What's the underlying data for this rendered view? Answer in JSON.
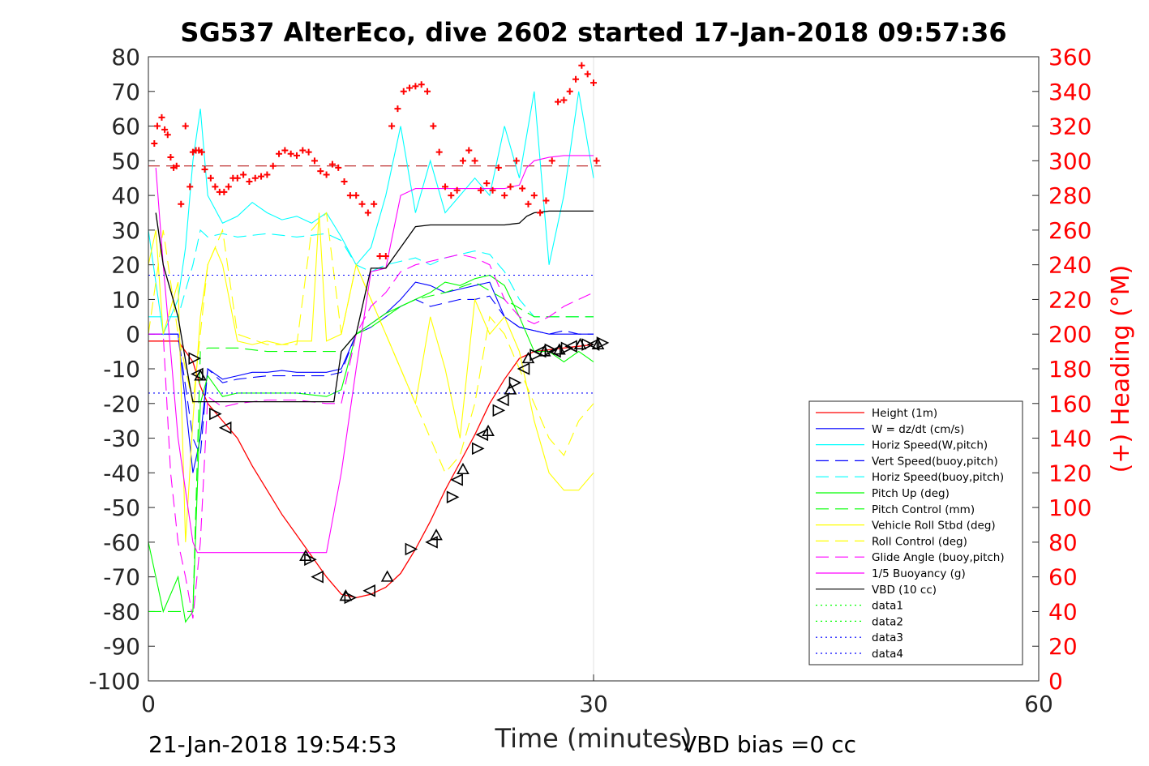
{
  "colors": {
    "height": "#ff0000",
    "w": "#0000ff",
    "horiz": "#00ffff",
    "pitch": "#00ff00",
    "roll": "#ffff00",
    "glide": "#ff00ff",
    "buoy": "#ff00ff",
    "vbd": "#000000",
    "heading": "#ff0000",
    "data12": "#00ff00",
    "data34": "#0000ff"
  },
  "chart_data": {
    "type": "line",
    "title": "SG537 AlterEco, dive 2602 started 17-Jan-2018 09:57:36",
    "xlabel": "Time (minutes)",
    "ylabel_right": "(+) Heading (°M)",
    "xlim": [
      0,
      60
    ],
    "ylim_left": [
      -100,
      80
    ],
    "ylim_right": [
      0,
      360
    ],
    "x_ticks": [
      "0",
      "30",
      "60"
    ],
    "y_ticks_left": [
      "80",
      "70",
      "60",
      "50",
      "40",
      "30",
      "20",
      "10",
      "0",
      "-10",
      "-20",
      "-30",
      "-40",
      "-50",
      "-60",
      "-70",
      "-80",
      "-90",
      "-100"
    ],
    "y_ticks_right": [
      "360",
      "340",
      "320",
      "300",
      "280",
      "260",
      "240",
      "220",
      "200",
      "180",
      "160",
      "140",
      "120",
      "100",
      "80",
      "60",
      "40",
      "20",
      "0"
    ],
    "grid_x_at": [
      30
    ],
    "legend_position": "lower-right",
    "footer_left": "21-Jan-2018 19:54:53",
    "footer_right": "VBD bias =0 cc",
    "series": [
      {
        "name": "Height (1m)",
        "key": "height",
        "style": "solid",
        "x": [
          0,
          2,
          3,
          3.5,
          4,
          5,
          6,
          7,
          8,
          9,
          10,
          11,
          12,
          13,
          14,
          15,
          16,
          17,
          18,
          19,
          20,
          21,
          22,
          23,
          24,
          25,
          26,
          27,
          28,
          29,
          30
        ],
        "y": [
          -2,
          -2,
          -8,
          -15,
          -20,
          -25,
          -30,
          -38,
          -45,
          -52,
          -58,
          -64,
          -70,
          -75,
          -76,
          -75,
          -73,
          -69,
          -62,
          -54,
          -45,
          -37,
          -29,
          -20,
          -13,
          -7,
          -5,
          -4.5,
          -4,
          -3.5,
          -3
        ]
      },
      {
        "name": "W = dz/dt (cm/s)",
        "key": "w",
        "style": "solid",
        "x": [
          0,
          2,
          2.5,
          3,
          3.5,
          4,
          5,
          6,
          7,
          8,
          9,
          10,
          11,
          12,
          13,
          14,
          15,
          16,
          17,
          18,
          19,
          20,
          21,
          22,
          23,
          24,
          25,
          26,
          27,
          28,
          29,
          30
        ],
        "y": [
          0,
          0,
          -20,
          -40,
          -30,
          -10,
          -13,
          -12,
          -11,
          -11,
          -10.5,
          -11,
          -11,
          -11,
          -10,
          0,
          3,
          6,
          10,
          15,
          14,
          12,
          13,
          14,
          15,
          5,
          2,
          1,
          0,
          0,
          0,
          0
        ]
      },
      {
        "name": "Horiz Speed(W,pitch)",
        "key": "horiz",
        "style": "solid",
        "x": [
          0,
          1,
          2,
          2.5,
          3,
          3.5,
          4,
          5,
          6,
          7,
          8,
          9,
          10,
          11,
          12,
          13,
          14,
          15,
          16,
          17,
          18,
          19,
          20,
          21,
          22,
          23,
          24,
          25,
          26,
          27,
          28,
          29,
          30
        ],
        "y": [
          30,
          0,
          10,
          25,
          50,
          65,
          40,
          32,
          34,
          38,
          35,
          33,
          34,
          32,
          35,
          28,
          20,
          25,
          40,
          60,
          35,
          50,
          35,
          40,
          45,
          40,
          60,
          45,
          70,
          20,
          40,
          70,
          45
        ]
      },
      {
        "name": "Vert Speed(buoy,pitch)",
        "key": "w",
        "style": "dashed",
        "x": [
          0,
          2,
          3,
          3.5,
          4,
          5,
          6,
          8,
          10,
          12,
          13,
          14,
          15,
          16,
          17,
          18,
          19,
          20,
          21,
          22,
          23,
          24,
          25,
          26,
          27,
          28,
          29,
          30
        ],
        "y": [
          0,
          0,
          -30,
          -35,
          -10,
          -14,
          -13,
          -12,
          -12,
          -12,
          -11,
          0,
          2,
          5,
          8,
          10,
          8,
          9,
          10,
          10,
          11,
          5,
          2,
          1,
          0,
          1,
          0,
          0
        ]
      },
      {
        "name": "Horiz Speed(buoy,pitch)",
        "key": "horiz",
        "style": "dashed",
        "x": [
          0,
          2,
          3,
          3.5,
          4,
          5,
          6,
          8,
          10,
          12,
          13,
          14,
          15,
          16,
          17,
          18,
          19,
          20,
          21,
          22,
          23,
          24,
          25,
          26,
          27,
          28,
          29,
          30
        ],
        "y": [
          5,
          5,
          20,
          30,
          28,
          29,
          28,
          29,
          28,
          29,
          27,
          20,
          18,
          20,
          21,
          22,
          20,
          22,
          23,
          24,
          23,
          18,
          10,
          5,
          5,
          5,
          5,
          5
        ]
      },
      {
        "name": "Pitch Up (deg)",
        "key": "pitch",
        "style": "solid",
        "x": [
          0,
          1,
          2,
          2.5,
          3,
          3.5,
          4,
          5,
          6,
          8,
          10,
          12,
          13,
          14,
          15,
          16,
          17,
          18,
          19,
          20,
          21,
          22,
          23,
          24,
          25,
          26,
          27,
          28,
          29,
          30
        ],
        "y": [
          -60,
          -80,
          -70,
          -83,
          -80,
          -20,
          -12,
          -18,
          -17,
          -17,
          -17,
          -18,
          -16,
          0,
          3,
          6,
          8,
          10,
          12,
          15,
          14,
          16,
          17,
          14,
          5,
          -5,
          -5,
          -8,
          -5,
          -8
        ]
      },
      {
        "name": "Pitch Control (mm)",
        "key": "pitch",
        "style": "dashed",
        "x": [
          0,
          2,
          3,
          3.5,
          4,
          6,
          8,
          10,
          12,
          13,
          14,
          15,
          16,
          17,
          18,
          20,
          22,
          24,
          26,
          28,
          30
        ],
        "y": [
          -80,
          -80,
          -80,
          -5,
          -4,
          -4,
          -5,
          -5,
          -5,
          -5,
          0,
          2,
          5,
          8,
          10,
          12,
          15,
          10,
          5,
          5,
          5
        ]
      },
      {
        "name": "Vehicle Roll Stbd (deg)",
        "key": "roll",
        "style": "solid",
        "x": [
          0,
          0.5,
          1,
          2,
          2.5,
          3,
          3.5,
          4,
          4.5,
          5,
          6,
          7,
          8,
          9,
          10,
          11,
          11.5,
          12,
          13,
          14,
          15,
          16,
          17,
          18,
          19,
          20,
          21,
          22,
          23,
          24,
          25,
          26,
          27,
          28,
          29,
          30
        ],
        "y": [
          20,
          30,
          0,
          15,
          -60,
          -25,
          5,
          20,
          25,
          20,
          -2,
          -3,
          -2,
          -3,
          -2,
          -2,
          35,
          -2,
          0,
          20,
          10,
          0,
          -10,
          -20,
          5,
          -10,
          -30,
          10,
          0,
          5,
          -5,
          -25,
          -40,
          -45,
          -45,
          -40
        ]
      },
      {
        "name": "Roll Control (deg)",
        "key": "roll",
        "style": "dashed",
        "x": [
          0,
          1,
          2,
          3,
          4,
          5,
          6,
          8,
          10,
          11,
          12,
          13,
          14,
          15,
          16,
          17,
          18,
          19,
          20,
          21,
          22,
          23,
          24,
          25,
          26,
          27,
          28,
          29,
          30
        ],
        "y": [
          0,
          30,
          0,
          -20,
          20,
          30,
          0,
          -3,
          -3,
          30,
          35,
          0,
          20,
          10,
          0,
          -10,
          -20,
          -30,
          -40,
          -35,
          -20,
          5,
          0,
          -10,
          -20,
          -30,
          -35,
          -25,
          -20
        ]
      },
      {
        "name": "Glide Angle (buoy,pitch)",
        "key": "glide",
        "style": "dashed",
        "x": [
          0,
          1,
          1.5,
          2,
          2.5,
          3,
          3.5,
          4,
          5,
          6,
          8,
          10,
          12,
          13,
          14,
          15,
          16,
          17,
          18,
          19,
          20,
          21,
          22,
          23,
          24,
          25,
          26,
          27,
          28,
          29,
          30
        ],
        "y": [
          0,
          0,
          -40,
          -60,
          -70,
          -82,
          -60,
          -18,
          -21,
          -20,
          -19,
          -19,
          -20,
          -20,
          0,
          8,
          12,
          18,
          20,
          21,
          22,
          23,
          22,
          20,
          10,
          5,
          3,
          5,
          8,
          10,
          12
        ]
      },
      {
        "name": "1/5 Buoyancy (g)",
        "key": "buoy",
        "style": "solid",
        "x": [
          0.5,
          1,
          2,
          3,
          3.3,
          4,
          6,
          8,
          10,
          11,
          12,
          13,
          14,
          15,
          16,
          17,
          18,
          19,
          20,
          21,
          22,
          23,
          24,
          25,
          25.5,
          26,
          27,
          28,
          29,
          30
        ],
        "y": [
          48,
          20,
          -30,
          -60,
          -63,
          -63,
          -63,
          -63,
          -63,
          -63,
          -63,
          -40,
          -10,
          18,
          19,
          40,
          42,
          42,
          42,
          42,
          42,
          42,
          42,
          43,
          48,
          50,
          51,
          51.5,
          51.5,
          51.5
        ]
      },
      {
        "name": "VBD (10 cc)",
        "key": "vbd",
        "style": "solid",
        "x": [
          0.5,
          1,
          2,
          2.8,
          3,
          4,
          6,
          8,
          10,
          12,
          12.5,
          13,
          14,
          15,
          16,
          17,
          18,
          19,
          20,
          21,
          22,
          23,
          24,
          25,
          25.5,
          26,
          27,
          28,
          29,
          30
        ],
        "y": [
          35,
          20,
          5,
          -15,
          -19.5,
          -19.5,
          -19.5,
          -19.5,
          -19.5,
          -19.5,
          -19.5,
          -5,
          0,
          19,
          19,
          25,
          31,
          31.5,
          31.5,
          31.5,
          31.5,
          31.5,
          31.5,
          32,
          34,
          35,
          35.5,
          35.5,
          35.5,
          35.5
        ]
      },
      {
        "name": "data1",
        "key": "data12",
        "style": "dotted",
        "x": [],
        "y": []
      },
      {
        "name": "data2",
        "key": "data12",
        "style": "dotted",
        "x": [],
        "y": []
      },
      {
        "name": "data3",
        "key": "data34",
        "style": "dotted",
        "x": [
          0,
          30
        ],
        "y": [
          17,
          17
        ]
      },
      {
        "name": "data4",
        "key": "data34",
        "style": "dotted",
        "x": [
          0,
          30
        ],
        "y": [
          -17,
          -17
        ]
      }
    ],
    "heading_points": {
      "axis": "right",
      "x": [
        0.4,
        0.6,
        0.9,
        1.1,
        1.3,
        1.5,
        1.7,
        1.9,
        2.2,
        2.5,
        2.8,
        3,
        3.2,
        3.4,
        3.6,
        3.8,
        4.2,
        4.5,
        4.8,
        5.1,
        5.4,
        5.7,
        6,
        6.4,
        6.8,
        7.2,
        7.6,
        8,
        8.4,
        8.8,
        9.2,
        9.6,
        10,
        10.4,
        10.8,
        11.2,
        11.6,
        12,
        12.4,
        12.8,
        13.2,
        13.6,
        14,
        14.4,
        14.8,
        15.2,
        15.6,
        16,
        16.4,
        16.8,
        17.2,
        17.6,
        18,
        18.4,
        18.8,
        19.2,
        19.6,
        20,
        20.4,
        20.8,
        21.2,
        21.6,
        22,
        22.4,
        22.8,
        23.2,
        23.6,
        24,
        24.4,
        24.8,
        25.2,
        25.6,
        26,
        26.4,
        26.8,
        27.2,
        27.6,
        28,
        28.4,
        28.8,
        29.2,
        29.6,
        30,
        30.2
      ],
      "y": [
        310,
        320,
        325,
        318,
        315,
        302,
        296,
        297,
        275,
        320,
        285,
        305,
        306,
        306,
        305,
        295,
        290,
        285,
        282,
        282,
        285,
        290,
        290,
        292,
        288,
        290,
        291,
        292,
        297,
        304,
        306,
        304,
        303,
        306,
        305,
        300,
        294,
        292,
        298,
        296,
        288,
        280,
        280,
        275,
        270,
        275,
        245,
        245,
        320,
        330,
        340,
        342,
        343,
        344,
        340,
        320,
        305,
        285,
        280,
        283,
        300,
        306,
        300,
        283,
        287,
        283,
        296,
        280,
        285,
        300,
        284,
        275,
        280,
        270,
        277,
        300,
        334,
        335,
        340,
        347,
        355,
        350,
        345,
        300
      ]
    },
    "heading_reference": {
      "value": 297,
      "axis": "right"
    },
    "markers": {
      "x": [
        3.1,
        3.3,
        3.5,
        4.5,
        5.2,
        10.6,
        10.9,
        11.4,
        13.3,
        13.6,
        14.9,
        16.1,
        17.7,
        19.1,
        19.4,
        20.5,
        20.8,
        21.2,
        22.2,
        22.5,
        22.9,
        23.6,
        23.9,
        24.4,
        24.7,
        25.3,
        25.6,
        26.1,
        26.4,
        26.7,
        27.1,
        27.4,
        27.7,
        28.2,
        28.5,
        29.1,
        29.6,
        30,
        30.3,
        30.6
      ],
      "y": [
        -7,
        -11.5,
        -12,
        -23,
        -27,
        -64,
        -65,
        -70,
        -75.5,
        -76,
        -74,
        -70,
        -62,
        -60,
        -58,
        -47,
        -42,
        -39,
        -33,
        -29,
        -28,
        -22,
        -19,
        -16,
        -14,
        -10,
        -7,
        -6,
        -5,
        -5,
        -4.5,
        -5,
        -4.5,
        -4,
        -3.5,
        -3,
        -3,
        -3,
        -3,
        -2.5
      ]
    }
  }
}
